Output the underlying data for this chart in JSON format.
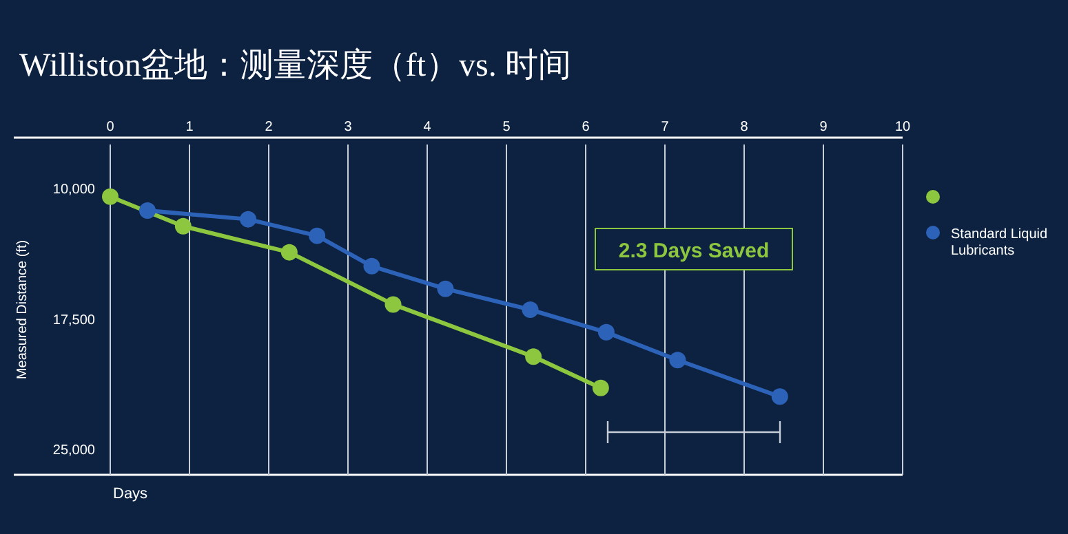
{
  "chart_data": {
    "type": "line",
    "title": "Williston盆地：测量深度（ft）vs. 时间",
    "xlabel": "Days",
    "ylabel": "Measured Distance (ft)",
    "xlim": [
      0,
      10
    ],
    "xticks": [
      0,
      1,
      2,
      3,
      4,
      5,
      6,
      7,
      8,
      9,
      10
    ],
    "ylim": [
      26500,
      7500
    ],
    "yticks": [
      {
        "value": 10000,
        "label": "10,000"
      },
      {
        "value": 17500,
        "label": "17,500"
      },
      {
        "value": 25000,
        "label": "25,000"
      }
    ],
    "grid": "x",
    "legend": "right",
    "marker": "circle",
    "line_style": "solid",
    "annotations": [
      "2.3 Days Saved"
    ],
    "series": [
      {
        "color": "#8dc63f",
        "x": [
          0,
          0.92,
          2.26,
          3.57,
          5.34,
          6.19
        ],
        "values": [
          10500,
          12200,
          13700,
          16700,
          19700,
          21500
        ]
      },
      {
        "name": "Standard Liquid Lubricants",
        "color": "#2c62b8",
        "x": [
          0.47,
          1.74,
          2.61,
          3.3,
          4.23,
          5.3,
          6.26,
          7.16,
          8.45
        ],
        "values": [
          11300,
          11800,
          12750,
          14500,
          15800,
          17000,
          18300,
          19900,
          22000
        ]
      }
    ]
  }
}
